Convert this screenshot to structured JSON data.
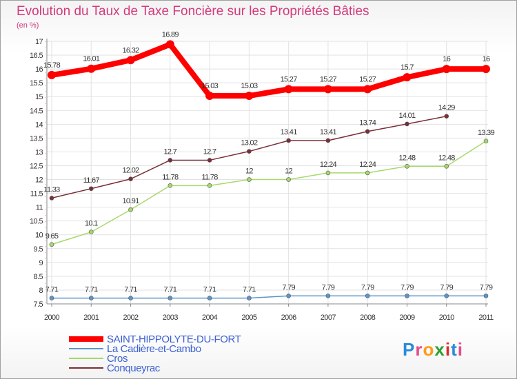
{
  "chart_data": {
    "type": "line",
    "title": "Evolution du Taux de Taxe Foncière sur les Propriétés Bâties",
    "subtitle": "(en %)",
    "x": [
      "2000",
      "2001",
      "2002",
      "2003",
      "2004",
      "2005",
      "2006",
      "2007",
      "2008",
      "2009",
      "2010",
      "2011"
    ],
    "ylim": [
      7.5,
      17
    ],
    "yticks": [
      "7.5",
      "8",
      "8.5",
      "9",
      "9.5",
      "10",
      "10.5",
      "11",
      "11.5",
      "12",
      "12.5",
      "13",
      "13.5",
      "14",
      "14.5",
      "15",
      "15.5",
      "16",
      "16.5",
      "17"
    ],
    "grid": true,
    "series": [
      {
        "name": "SAINT-HIPPOLYTE-DU-FORT",
        "color": "#ff0000",
        "values": [
          15.78,
          16.01,
          16.32,
          16.89,
          15.03,
          15.03,
          15.27,
          15.27,
          15.27,
          15.7,
          16,
          16
        ],
        "labels": [
          "15.78",
          "16.01",
          "16.32",
          "16.89",
          "15.03",
          "15.03",
          "15.27",
          "15.27",
          "15.27",
          "15.7",
          "16",
          "16"
        ]
      },
      {
        "name": "La Cadière-et-Cambo",
        "color": "#5b95c8",
        "values": [
          7.71,
          7.71,
          7.71,
          7.71,
          7.71,
          7.71,
          7.79,
          7.79,
          7.79,
          7.79,
          7.79,
          7.79
        ],
        "labels": [
          "7.71",
          "7.71",
          "7.71",
          "7.71",
          "7.71",
          "7.71",
          "7.79",
          "7.79",
          "7.79",
          "7.79",
          "7.79",
          "7.79"
        ]
      },
      {
        "name": "Cros",
        "color": "#a6d96a",
        "values": [
          9.65,
          10.1,
          10.91,
          11.78,
          11.78,
          12,
          12,
          12.24,
          12.24,
          12.48,
          12.48,
          13.39
        ],
        "labels": [
          "9.65",
          "10.1",
          "10.91",
          "11.78",
          "11.78",
          "12",
          "12",
          "12.24",
          "12.24",
          "12.48",
          "12.48",
          "13.39"
        ]
      },
      {
        "name": "Conqueyrac",
        "color": "#7a2e36",
        "values": [
          11.33,
          11.67,
          12.02,
          12.7,
          12.7,
          13.02,
          13.41,
          13.41,
          13.74,
          14.01,
          14.29,
          null
        ],
        "labels": [
          "11.33",
          "11.67",
          "12.02",
          "12.7",
          "12.7",
          "13.02",
          "13.41",
          "13.41",
          "13.74",
          "14.01",
          "14.29",
          null
        ]
      }
    ]
  },
  "legend": {
    "placement": "bottom-left",
    "items": [
      "SAINT-HIPPOLYTE-DU-FORT",
      "La Cadière-et-Cambo",
      "Cros",
      "Conqueyrac"
    ]
  },
  "logo": {
    "text": "Proxiti",
    "letters": [
      "P",
      "r",
      "o",
      "x",
      "i",
      "t",
      "i"
    ],
    "colors": [
      "#2a8ad8",
      "#e64b8a",
      "#ff9a1a",
      "#2ca02c",
      "#d62e2e",
      "#2a8ad8",
      "#e64b8a"
    ]
  }
}
